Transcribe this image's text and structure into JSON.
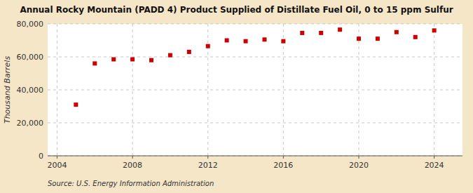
{
  "chart_data": {
    "type": "scatter",
    "title": "Annual Rocky Mountain (PADD 4) Product Supplied of Distillate Fuel Oil, 0 to 15 ppm Sulfur",
    "ylabel": "Thousand Barrels",
    "source": "Source: U.S. Energy Information Administration",
    "x": [
      2005,
      2006,
      2007,
      2008,
      2009,
      2010,
      2011,
      2012,
      2013,
      2014,
      2015,
      2016,
      2017,
      2018,
      2019,
      2020,
      2021,
      2022,
      2023,
      2024
    ],
    "values": [
      31000,
      56000,
      58500,
      58500,
      58000,
      61000,
      63000,
      66500,
      70000,
      69500,
      70500,
      69500,
      74500,
      74500,
      76500,
      71000,
      71000,
      75000,
      72000,
      76000
    ],
    "color": "#cc0000",
    "marker": "square",
    "xlim": [
      2003.5,
      2025.5
    ],
    "ylim": [
      0,
      80000
    ],
    "xticks": [
      2004,
      2008,
      2012,
      2016,
      2020,
      2024
    ],
    "yticks": [
      0,
      {
        "value": 20000,
        "label": "20,000"
      },
      {
        "value": 40000,
        "label": "40,000"
      },
      {
        "value": 60000,
        "label": "60,000"
      },
      {
        "value": 80000,
        "label": "80,000"
      }
    ],
    "grid": true
  }
}
